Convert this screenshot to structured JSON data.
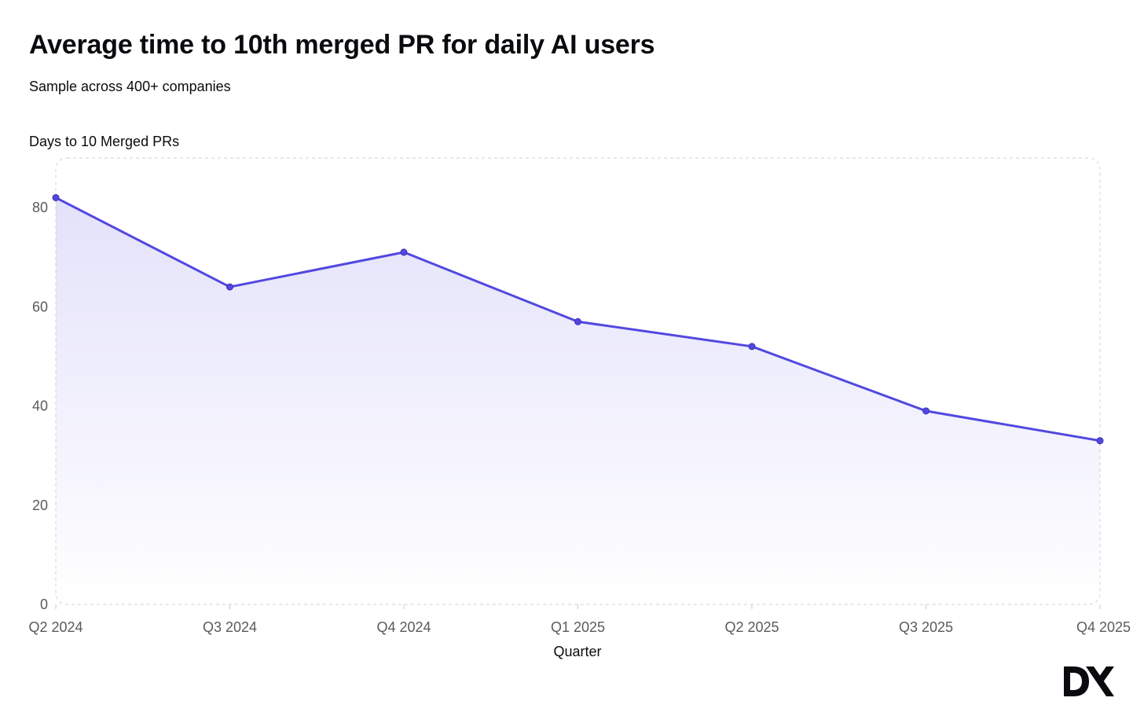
{
  "chart_data": {
    "type": "area",
    "title": "Average time to 10th merged PR for daily AI users",
    "subtitle": "Sample across 400+ companies",
    "ylabel": "Days to 10 Merged PRs",
    "xlabel": "Quarter",
    "categories": [
      "Q2 2024",
      "Q3 2024",
      "Q4 2024",
      "Q1 2025",
      "Q2 2025",
      "Q3 2025",
      "Q4 2025"
    ],
    "series": [
      {
        "values": [
          82,
          64,
          71,
          57,
          52,
          39,
          33
        ]
      }
    ],
    "ylim": [
      0,
      90
    ],
    "yticks": [
      0,
      20,
      40,
      60,
      80
    ],
    "grid": false,
    "line_color": "#5248e0",
    "fill_color": "#5248e0"
  },
  "branding": {
    "logo_text": "DX"
  }
}
